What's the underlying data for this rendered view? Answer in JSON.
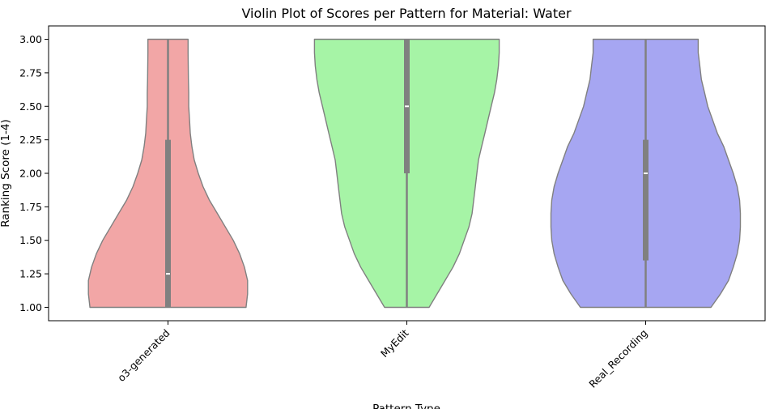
{
  "chart_data": {
    "type": "violin",
    "title": "Violin Plot of Scores per Pattern for Material: Water",
    "xlabel": "Pattern Type",
    "ylabel": "Ranking Score (1-4)",
    "ylim": [
      0.9,
      3.1
    ],
    "yticks": [
      "1.00",
      "1.25",
      "1.50",
      "1.75",
      "2.00",
      "2.25",
      "2.50",
      "2.75",
      "3.00"
    ],
    "categories": [
      "o3-generated",
      "MyEdit",
      "Real_Recording"
    ],
    "colors": [
      "#f2a6a6",
      "#a6f4a6",
      "#a6a6f2"
    ],
    "outline_color": "#808080",
    "box_color": "#808080",
    "series": [
      {
        "category": "o3-generated",
        "median": 1.25,
        "q1": 1.0,
        "q3": 2.25,
        "whisker_low": 1.0,
        "whisker_high": 3.0,
        "density": [
          [
            1.0,
            0.49
          ],
          [
            1.1,
            0.5
          ],
          [
            1.2,
            0.5
          ],
          [
            1.3,
            0.48
          ],
          [
            1.4,
            0.45
          ],
          [
            1.5,
            0.41
          ],
          [
            1.6,
            0.36
          ],
          [
            1.7,
            0.31
          ],
          [
            1.8,
            0.26
          ],
          [
            1.9,
            0.22
          ],
          [
            2.0,
            0.19
          ],
          [
            2.1,
            0.165
          ],
          [
            2.2,
            0.15
          ],
          [
            2.3,
            0.14
          ],
          [
            2.4,
            0.135
          ],
          [
            2.5,
            0.13
          ],
          [
            2.6,
            0.13
          ],
          [
            2.7,
            0.128
          ],
          [
            2.8,
            0.127
          ],
          [
            2.9,
            0.126
          ],
          [
            3.0,
            0.126
          ]
        ]
      },
      {
        "category": "MyEdit",
        "median": 2.5,
        "q1": 2.0,
        "q3": 3.0,
        "whisker_low": 1.0,
        "whisker_high": 3.0,
        "density": [
          [
            1.0,
            0.14
          ],
          [
            1.1,
            0.19
          ],
          [
            1.2,
            0.24
          ],
          [
            1.3,
            0.29
          ],
          [
            1.4,
            0.33
          ],
          [
            1.5,
            0.36
          ],
          [
            1.6,
            0.39
          ],
          [
            1.7,
            0.41
          ],
          [
            1.8,
            0.42
          ],
          [
            1.9,
            0.43
          ],
          [
            2.0,
            0.44
          ],
          [
            2.1,
            0.45
          ],
          [
            2.2,
            0.47
          ],
          [
            2.3,
            0.49
          ],
          [
            2.4,
            0.51
          ],
          [
            2.5,
            0.53
          ],
          [
            2.6,
            0.55
          ],
          [
            2.7,
            0.565
          ],
          [
            2.8,
            0.575
          ],
          [
            2.9,
            0.58
          ],
          [
            3.0,
            0.58
          ]
        ]
      },
      {
        "category": "Real_Recording",
        "median": 2.0,
        "q1": 1.35,
        "q3": 2.25,
        "whisker_low": 1.0,
        "whisker_high": 3.0,
        "density": [
          [
            1.0,
            0.41
          ],
          [
            1.1,
            0.47
          ],
          [
            1.2,
            0.52
          ],
          [
            1.3,
            0.55
          ],
          [
            1.4,
            0.575
          ],
          [
            1.5,
            0.59
          ],
          [
            1.6,
            0.595
          ],
          [
            1.7,
            0.595
          ],
          [
            1.8,
            0.59
          ],
          [
            1.9,
            0.575
          ],
          [
            2.0,
            0.55
          ],
          [
            2.1,
            0.52
          ],
          [
            2.2,
            0.49
          ],
          [
            2.3,
            0.45
          ],
          [
            2.4,
            0.42
          ],
          [
            2.5,
            0.39
          ],
          [
            2.6,
            0.37
          ],
          [
            2.7,
            0.35
          ],
          [
            2.8,
            0.34
          ],
          [
            2.9,
            0.33
          ],
          [
            3.0,
            0.33
          ]
        ]
      }
    ]
  }
}
